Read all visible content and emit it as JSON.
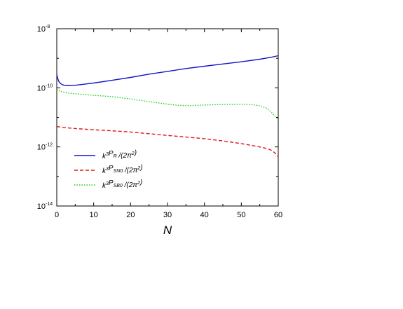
{
  "chart_data": {
    "type": "line",
    "xlabel": "N",
    "ylabel": "",
    "xlim": [
      0,
      60
    ],
    "ylim": [
      1e-14,
      1e-08
    ],
    "yscale": "log",
    "x_ticks": [
      "0",
      "10",
      "20",
      "30",
      "40",
      "50",
      "60"
    ],
    "y_ticks": [
      {
        "value": 1e-08,
        "base": "10",
        "exp": "-8"
      },
      {
        "value": 1e-10,
        "base": "10",
        "exp": "-10"
      },
      {
        "value": 1e-12,
        "base": "10",
        "exp": "-12"
      },
      {
        "value": 1e-14,
        "base": "10",
        "exp": "-14"
      }
    ],
    "grid": false,
    "legend_position": "bottom-left",
    "series": [
      {
        "name": "k³P_R /(2π²)",
        "legend": {
          "pre": "k",
          "sup1": "3",
          "mid": "P",
          "sub": "R",
          "post": " /(2π",
          "sup2": "2",
          "end": ")"
        },
        "color": "#1515c8",
        "style": "solid",
        "x": [
          0,
          0.3,
          0.6,
          1,
          1.5,
          2,
          3,
          5,
          10,
          15,
          20,
          25,
          30,
          35,
          40,
          45,
          50,
          55,
          58,
          60
        ],
        "y": [
          2.8e-10,
          2e-10,
          1.6e-10,
          1.4e-10,
          1.28e-10,
          1.22e-10,
          1.2e-10,
          1.22e-10,
          1.45e-10,
          1.8e-10,
          2.25e-10,
          2.9e-10,
          3.6e-10,
          4.5e-10,
          5.4e-10,
          6.4e-10,
          7.6e-10,
          9.3e-10,
          1.08e-09,
          1.22e-09
        ]
      },
      {
        "name": "k³P_SN0 /(2π²)",
        "legend": {
          "pre": "k",
          "sup1": "3",
          "mid": "P",
          "sub": "SN0",
          "post": " /(2π",
          "sup2": "2",
          "end": ")"
        },
        "color": "#e01515",
        "style": "dashed",
        "x": [
          0,
          2,
          5,
          10,
          15,
          20,
          25,
          30,
          35,
          40,
          45,
          50,
          55,
          57,
          58,
          59,
          60
        ],
        "y": [
          4.9e-12,
          4.5e-12,
          4.2e-12,
          3.8e-12,
          3.5e-12,
          3.2e-12,
          2.8e-12,
          2.45e-12,
          2.15e-12,
          1.9e-12,
          1.6e-12,
          1.3e-12,
          1e-12,
          8.8e-13,
          7.8e-13,
          6.4e-13,
          4.6e-13
        ]
      },
      {
        "name": "k³P_SB0 /(2π²)",
        "legend": {
          "pre": "k",
          "sup1": "3",
          "mid": "P",
          "sub": "SB0",
          "post": " /(2π",
          "sup2": "2",
          "end": ")"
        },
        "color": "#22cc22",
        "style": "dotted",
        "x": [
          0,
          1,
          3,
          5,
          10,
          15,
          20,
          25,
          30,
          33,
          36,
          40,
          45,
          50,
          53,
          55,
          57,
          58,
          59,
          60
        ],
        "y": [
          9e-11,
          7.5e-11,
          6.7e-11,
          6.3e-11,
          5.6e-11,
          5e-11,
          4.2e-11,
          3.4e-11,
          2.8e-11,
          2.55e-11,
          2.5e-11,
          2.62e-11,
          2.75e-11,
          2.78e-11,
          2.7e-11,
          2.45e-11,
          2e-11,
          1.55e-11,
          1.15e-11,
          8.5e-12
        ]
      }
    ]
  }
}
